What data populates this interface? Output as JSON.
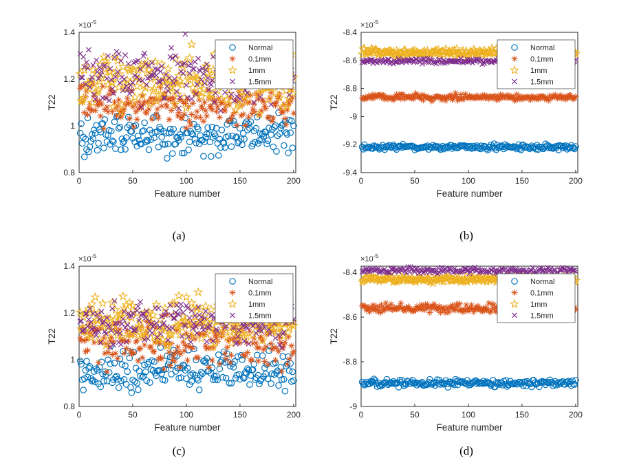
{
  "figure": {
    "background": "#ffffff",
    "axis_color": "#262626",
    "text_color": "#262626",
    "legend_border_color": "#4d4d4d",
    "legend_background": "#ffffff"
  },
  "chart_data": [
    {
      "id": "a",
      "type": "scatter",
      "caption": "(a)",
      "xlabel": "Feature number",
      "ylabel": "T22",
      "exponent": {
        "base": "×10",
        "power": "-5"
      },
      "xlim": [
        0,
        202
      ],
      "ylim": [
        0.8,
        1.4
      ],
      "xticks": [
        {
          "v": 0,
          "label": "0"
        },
        {
          "v": 50,
          "label": "50"
        },
        {
          "v": 100,
          "label": "100"
        },
        {
          "v": 150,
          "label": "150"
        },
        {
          "v": 200,
          "label": "200"
        }
      ],
      "yticks": [
        {
          "v": 0.8,
          "label": "0.8"
        },
        {
          "v": 1.0,
          "label": "1"
        },
        {
          "v": 1.2,
          "label": "1.2"
        },
        {
          "v": 1.4,
          "label": "1.4"
        }
      ],
      "legend_position": "top-right",
      "grid": false,
      "series": [
        {
          "name": "Normal",
          "marker": "circle",
          "color": "#0072BD",
          "n": 200,
          "center": 0.963,
          "spread": 0.105,
          "seed": 101
        },
        {
          "name": "0.1mm",
          "marker": "asterisk",
          "color": "#D95319",
          "n": 200,
          "center": 1.093,
          "spread": 0.1,
          "seed": 102
        },
        {
          "name": "1mm",
          "marker": "pentagram",
          "color": "#EDB120",
          "n": 200,
          "center": 1.198,
          "spread": 0.135,
          "seed": 103
        },
        {
          "name": "1.5mm",
          "marker": "x",
          "color": "#7E2F8E",
          "n": 200,
          "center": 1.222,
          "spread": 0.135,
          "seed": 104
        }
      ]
    },
    {
      "id": "b",
      "type": "scatter",
      "caption": "(b)",
      "xlabel": "Feature number",
      "ylabel": "T22",
      "exponent": {
        "base": "×10",
        "power": "-5"
      },
      "xlim": [
        0,
        202
      ],
      "ylim": [
        -9.4,
        -8.4
      ],
      "xticks": [
        {
          "v": 0,
          "label": "0"
        },
        {
          "v": 50,
          "label": "50"
        },
        {
          "v": 100,
          "label": "100"
        },
        {
          "v": 150,
          "label": "150"
        },
        {
          "v": 200,
          "label": "200"
        }
      ],
      "yticks": [
        {
          "v": -9.4,
          "label": "-9.4"
        },
        {
          "v": -9.2,
          "label": "-9.2"
        },
        {
          "v": -9.0,
          "label": "-9"
        },
        {
          "v": -8.8,
          "label": "-8.8"
        },
        {
          "v": -8.6,
          "label": "-8.6"
        },
        {
          "v": -8.4,
          "label": "-8.4"
        }
      ],
      "legend_position": "top-right",
      "grid": false,
      "series": [
        {
          "name": "Normal",
          "marker": "circle",
          "color": "#0072BD",
          "n": 200,
          "center": -9.218,
          "spread": 0.022,
          "seed": 201
        },
        {
          "name": "0.1mm",
          "marker": "asterisk",
          "color": "#D95319",
          "n": 200,
          "center": -8.863,
          "spread": 0.028,
          "seed": 202
        },
        {
          "name": "1mm",
          "marker": "pentagram",
          "color": "#EDB120",
          "n": 200,
          "center": -8.545,
          "spread": 0.028,
          "seed": 203
        },
        {
          "name": "1.5mm",
          "marker": "x",
          "color": "#7E2F8E",
          "n": 200,
          "center": -8.606,
          "spread": 0.022,
          "seed": 204
        }
      ]
    },
    {
      "id": "c",
      "type": "scatter",
      "caption": "(c)",
      "xlabel": "Feature number",
      "ylabel": "T22",
      "exponent": {
        "base": "×10",
        "power": "-5"
      },
      "xlim": [
        0,
        202
      ],
      "ylim": [
        0.8,
        1.4
      ],
      "xticks": [
        {
          "v": 0,
          "label": "0"
        },
        {
          "v": 50,
          "label": "50"
        },
        {
          "v": 100,
          "label": "100"
        },
        {
          "v": 150,
          "label": "150"
        },
        {
          "v": 200,
          "label": "200"
        }
      ],
      "yticks": [
        {
          "v": 0.8,
          "label": "0.8"
        },
        {
          "v": 1.0,
          "label": "1"
        },
        {
          "v": 1.2,
          "label": "1.2"
        },
        {
          "v": 1.4,
          "label": "1.4"
        }
      ],
      "legend_position": "top-right",
      "grid": false,
      "series": [
        {
          "name": "Normal",
          "marker": "circle",
          "color": "#0072BD",
          "n": 200,
          "center": 0.955,
          "spread": 0.102,
          "seed": 301
        },
        {
          "name": "0.1mm",
          "marker": "asterisk",
          "color": "#D95319",
          "n": 200,
          "center": 1.078,
          "spread": 0.122,
          "seed": 302
        },
        {
          "name": "1mm",
          "marker": "pentagram",
          "color": "#EDB120",
          "n": 200,
          "center": 1.155,
          "spread": 0.115,
          "seed": 303
        },
        {
          "name": "1.5mm",
          "marker": "x",
          "color": "#7E2F8E",
          "n": 200,
          "center": 1.158,
          "spread": 0.115,
          "seed": 304
        }
      ]
    },
    {
      "id": "d",
      "type": "scatter",
      "caption": "(d)",
      "xlabel": "Feature number",
      "ylabel": "T22",
      "exponent": {
        "base": "×10",
        "power": "-5"
      },
      "xlim": [
        0,
        202
      ],
      "ylim": [
        -9.0,
        -8.372
      ],
      "xticks": [
        {
          "v": 0,
          "label": "0"
        },
        {
          "v": 50,
          "label": "50"
        },
        {
          "v": 100,
          "label": "100"
        },
        {
          "v": 150,
          "label": "150"
        },
        {
          "v": 200,
          "label": "200"
        }
      ],
      "yticks": [
        {
          "v": -9.0,
          "label": "-9"
        },
        {
          "v": -8.8,
          "label": "-8.8"
        },
        {
          "v": -8.6,
          "label": "-8.6"
        },
        {
          "v": -8.4,
          "label": "-8.4"
        }
      ],
      "legend_position": "top-right",
      "grid": false,
      "series": [
        {
          "name": "Normal",
          "marker": "circle",
          "color": "#0072BD",
          "n": 200,
          "center": -8.896,
          "spread": 0.018,
          "seed": 401
        },
        {
          "name": "0.1mm",
          "marker": "asterisk",
          "color": "#D95319",
          "n": 200,
          "center": -8.56,
          "spread": 0.026,
          "seed": 402
        },
        {
          "name": "1mm",
          "marker": "pentagram",
          "color": "#EDB120",
          "n": 200,
          "center": -8.43,
          "spread": 0.017,
          "seed": 403
        },
        {
          "name": "1.5mm",
          "marker": "x",
          "color": "#7E2F8E",
          "n": 200,
          "center": -8.392,
          "spread": 0.016,
          "seed": 404
        }
      ]
    }
  ]
}
